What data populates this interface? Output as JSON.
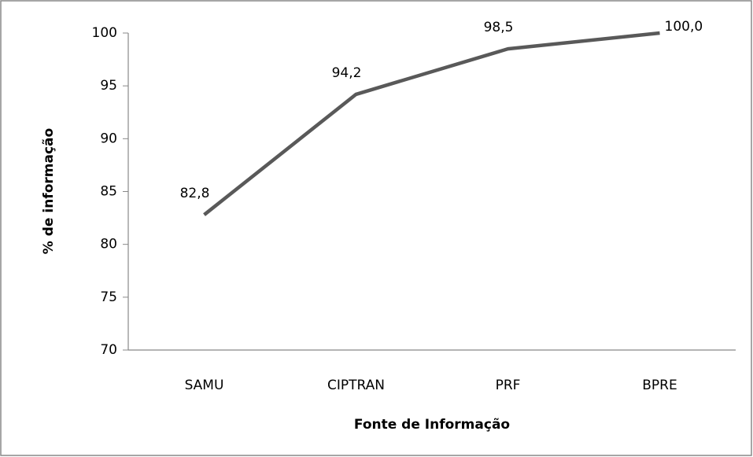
{
  "chart_data": {
    "type": "line",
    "x_label": "Fonte de Informação",
    "y_label": "% de informação",
    "categories": [
      "SAMU",
      "CIPTRAN",
      "PRF",
      "BPRE"
    ],
    "series": [
      {
        "name": "% de informação",
        "color": "#595959",
        "values": [
          82.8,
          94.2,
          98.5,
          100.0
        ],
        "value_labels": [
          "82,8",
          "94,2",
          "98,5",
          "100,0"
        ]
      }
    ],
    "ylim": [
      70,
      100
    ],
    "yticks": [
      70,
      75,
      80,
      85,
      90,
      95,
      100
    ],
    "grid": false,
    "legend": false
  }
}
